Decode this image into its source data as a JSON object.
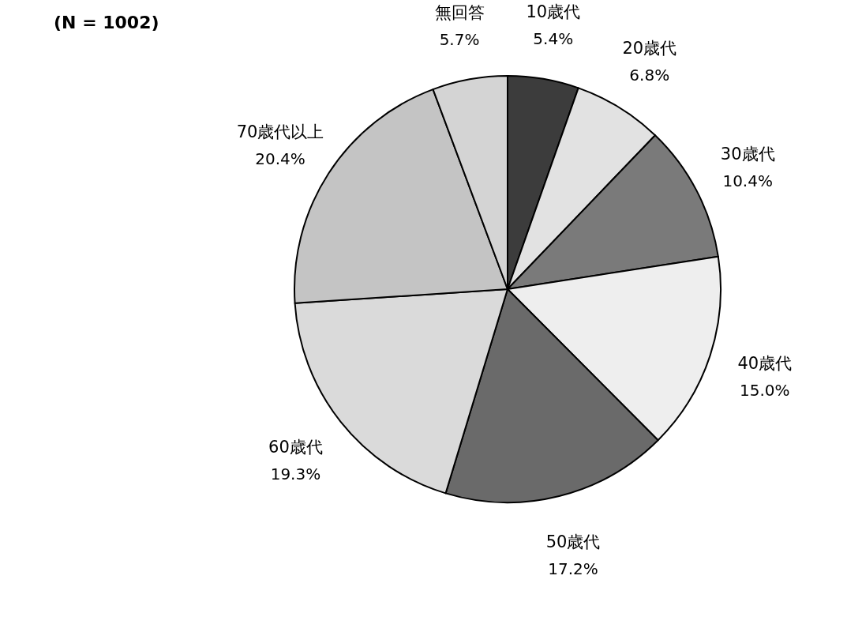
{
  "chart_data": {
    "type": "pie",
    "title": "(N = 1002)",
    "categories": [
      "10歳代",
      "20歳代",
      "30歳代",
      "40歳代",
      "50歳代",
      "60歳代",
      "70歳代以上",
      "無回答"
    ],
    "values": [
      5.4,
      6.8,
      10.4,
      15.0,
      17.2,
      19.3,
      20.4,
      5.7
    ],
    "colors": [
      "#3c3c3c",
      "#e2e2e2",
      "#7a7a7a",
      "#eeeeee",
      "#6a6a6a",
      "#dadada",
      "#c4c4c4",
      "#d4d4d4"
    ],
    "value_labels": [
      "5.4%",
      "6.8%",
      "10.4%",
      "15.0%",
      "17.2%",
      "19.3%",
      "20.4%",
      "5.7%"
    ],
    "legend": false
  }
}
